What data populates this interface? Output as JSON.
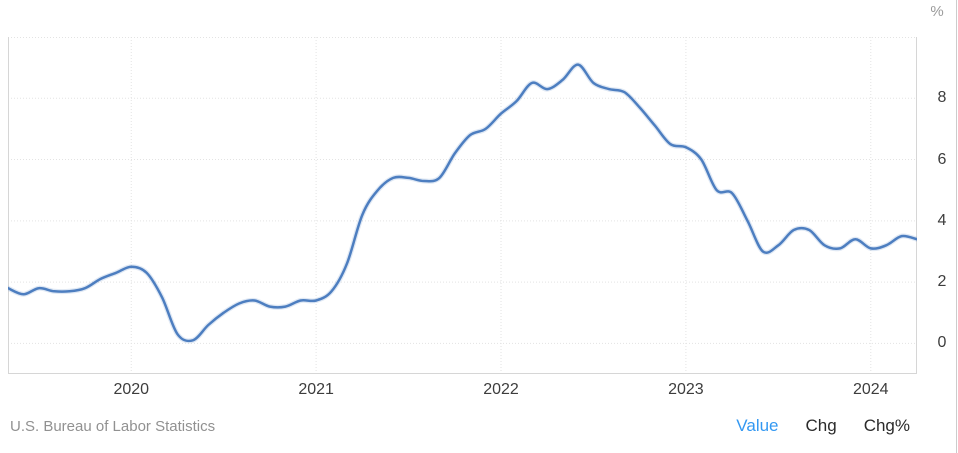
{
  "page": {
    "unit_label": "%",
    "source": "U.S. Bureau of Labor Statistics",
    "legend": {
      "value": "Value",
      "chg": "Chg",
      "chg_pct": "Chg%"
    }
  },
  "colors": {
    "line": "#4d7ec0",
    "grid": "#e3e3e3",
    "plot_border": "#d6d6d6",
    "axis_text": "#3d3d3d",
    "source_text": "#919191",
    "legend_active": "#3398f2",
    "legend_inactive": "#2b2b2b"
  },
  "chart_data": {
    "type": "line",
    "title": "",
    "xlabel": "",
    "ylabel": "%",
    "grid": true,
    "legend_position": "bottom-right",
    "ylim": [
      -1,
      10
    ],
    "y_ticks": [
      8,
      6,
      4,
      2,
      0
    ],
    "y_gridlines": [
      0,
      2,
      4,
      6,
      8,
      10
    ],
    "x_tick_years": [
      "2020",
      "2021",
      "2022",
      "2023",
      "2024"
    ],
    "x": [
      "2019-05",
      "2019-06",
      "2019-07",
      "2019-08",
      "2019-09",
      "2019-10",
      "2019-11",
      "2019-12",
      "2020-01",
      "2020-02",
      "2020-03",
      "2020-04",
      "2020-05",
      "2020-06",
      "2020-07",
      "2020-08",
      "2020-09",
      "2020-10",
      "2020-11",
      "2020-12",
      "2021-01",
      "2021-02",
      "2021-03",
      "2021-04",
      "2021-05",
      "2021-06",
      "2021-07",
      "2021-08",
      "2021-09",
      "2021-10",
      "2021-11",
      "2021-12",
      "2022-01",
      "2022-02",
      "2022-03",
      "2022-04",
      "2022-05",
      "2022-06",
      "2022-07",
      "2022-08",
      "2022-09",
      "2022-10",
      "2022-11",
      "2022-12",
      "2023-01",
      "2023-02",
      "2023-03",
      "2023-04",
      "2023-05",
      "2023-06",
      "2023-07",
      "2023-08",
      "2023-09",
      "2023-10",
      "2023-11",
      "2023-12",
      "2024-01",
      "2024-02",
      "2024-03",
      "2024-04"
    ],
    "series": [
      {
        "name": "Value",
        "color": "#4d7ec0",
        "values": [
          1.8,
          1.6,
          1.8,
          1.7,
          1.7,
          1.8,
          2.1,
          2.3,
          2.5,
          2.3,
          1.5,
          0.3,
          0.1,
          0.6,
          1.0,
          1.3,
          1.4,
          1.2,
          1.2,
          1.4,
          1.4,
          1.7,
          2.6,
          4.2,
          5.0,
          5.4,
          5.4,
          5.3,
          5.4,
          6.2,
          6.8,
          7.0,
          7.5,
          7.9,
          8.5,
          8.3,
          8.6,
          9.1,
          8.5,
          8.3,
          8.2,
          7.7,
          7.1,
          6.5,
          6.4,
          6.0,
          5.0,
          4.9,
          4.0,
          3.0,
          3.2,
          3.7,
          3.7,
          3.2,
          3.1,
          3.4,
          3.1,
          3.2,
          3.5,
          3.4
        ]
      }
    ]
  }
}
